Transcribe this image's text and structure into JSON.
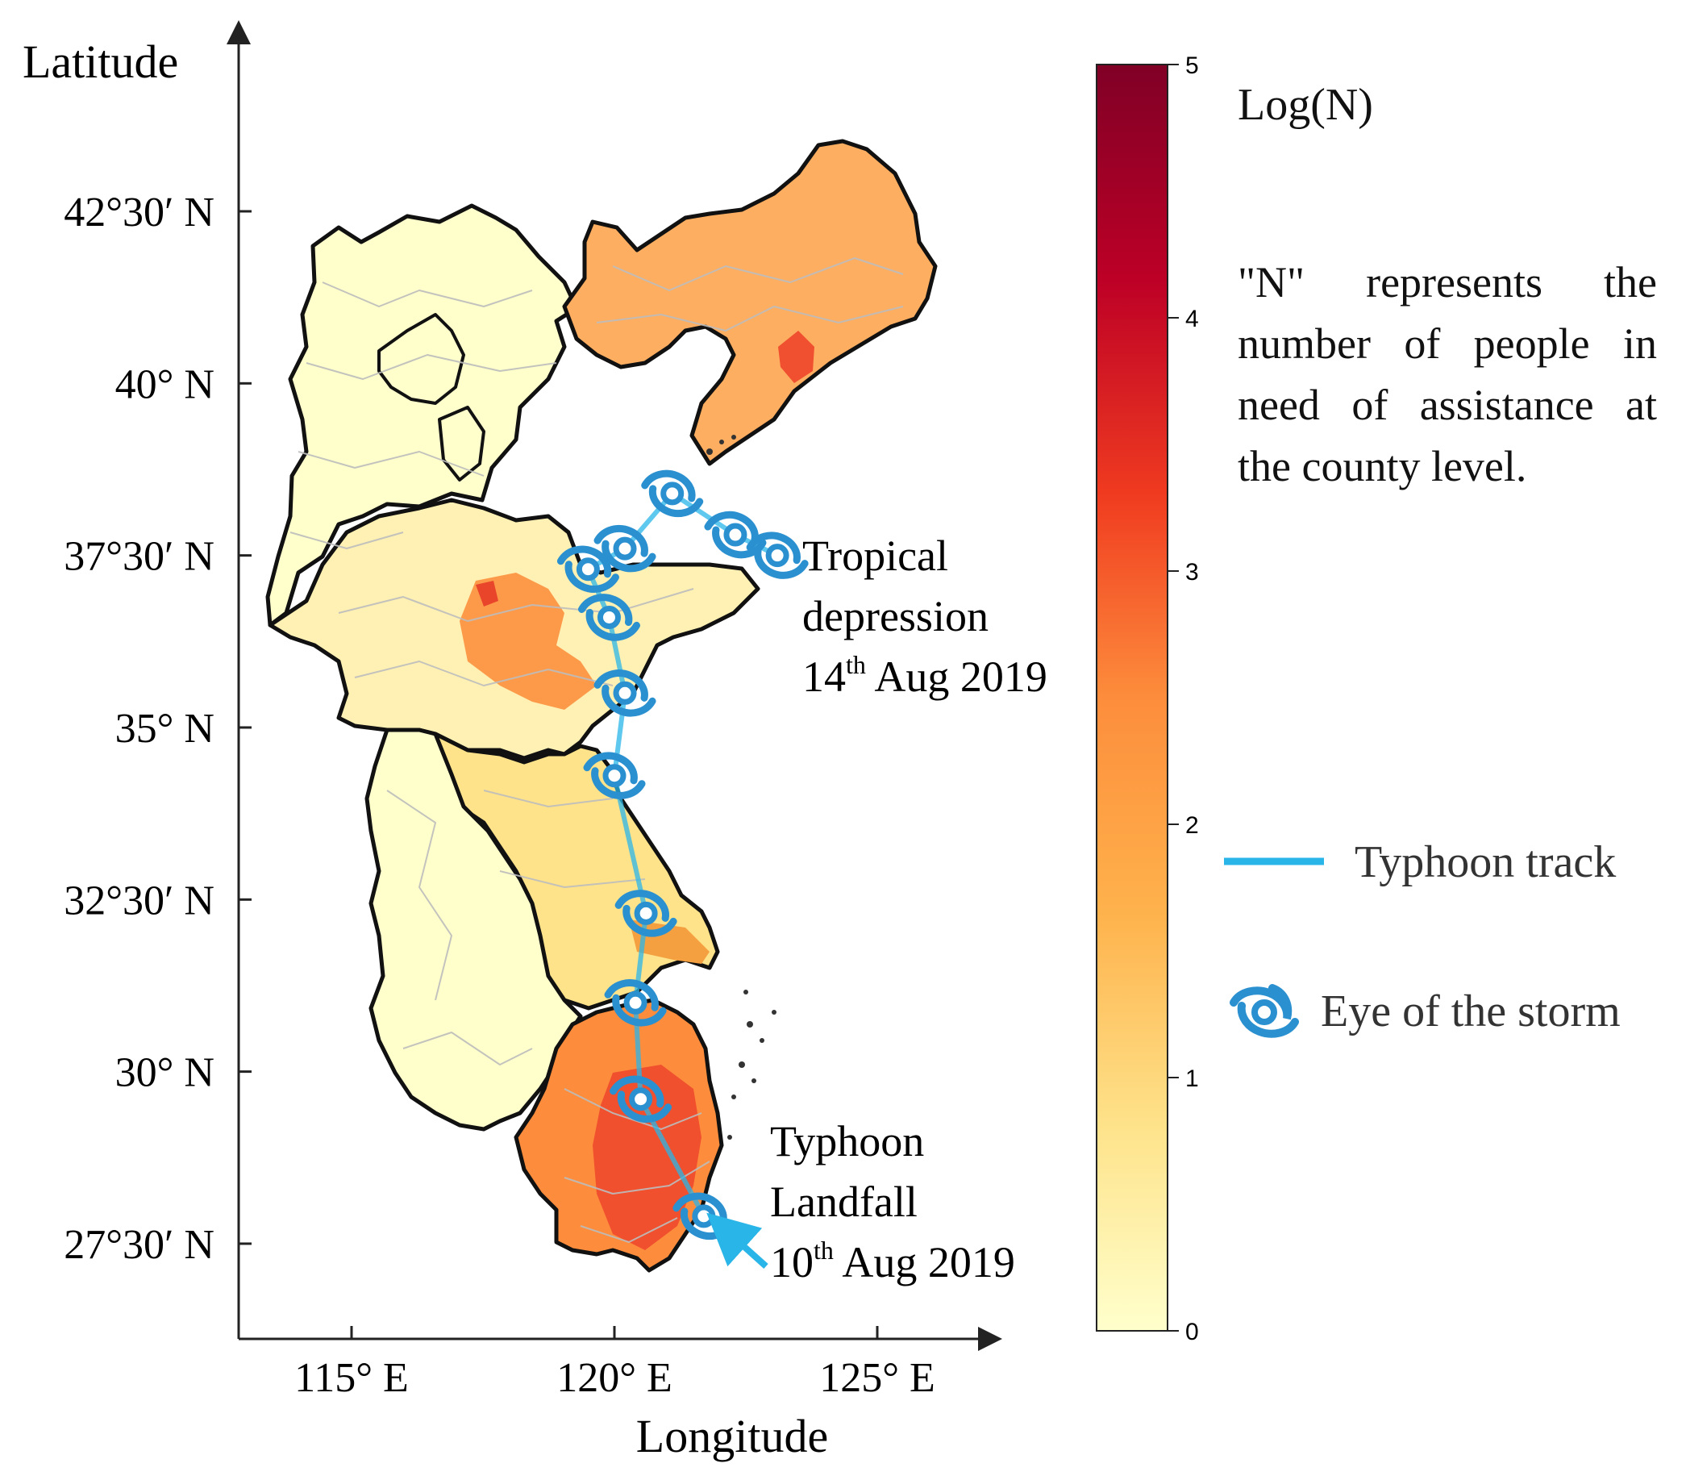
{
  "axes": {
    "y_title": "Latitude",
    "x_title": "Longitude",
    "y_ticks": [
      "42°30′ N",
      "40° N",
      "37°30′ N",
      "35° N",
      "32°30′ N",
      "30° N",
      "27°30′ N"
    ],
    "x_ticks": [
      "115° E",
      "120° E",
      "125° E"
    ]
  },
  "colorbar": {
    "title": "Log(N)",
    "ticks": [
      "0",
      "1",
      "2",
      "3",
      "4",
      "5"
    ],
    "range": [
      0,
      5
    ],
    "colors": [
      "#ffffcc",
      "#fed976",
      "#feb24c",
      "#fd8d3c",
      "#f03b20",
      "#bd0026",
      "#800026"
    ]
  },
  "note": "\"N\" represents the number of people in need of assistance at the county level.",
  "annotations": {
    "tropical": {
      "line1": "Tropical",
      "line2": "depression",
      "day": "14",
      "sup": "th",
      "rest": " Aug 2019"
    },
    "landfall": {
      "line1": "Typhoon",
      "line2": "Landfall",
      "day": "10",
      "sup": "th",
      "rest": " Aug 2019"
    }
  },
  "legend": {
    "track_label": "Typhoon track",
    "eye_label": "Eye of the storm",
    "track_color": "#29b5e8",
    "eye_color": "#2a90d0"
  },
  "typhoon_track": [
    {
      "lon": 121.7,
      "lat": 27.9
    },
    {
      "lon": 120.5,
      "lat": 29.6
    },
    {
      "lon": 120.4,
      "lat": 31.0
    },
    {
      "lon": 120.6,
      "lat": 32.3
    },
    {
      "lon": 120.0,
      "lat": 34.3
    },
    {
      "lon": 120.2,
      "lat": 35.5
    },
    {
      "lon": 119.9,
      "lat": 36.6
    },
    {
      "lon": 119.5,
      "lat": 37.3
    },
    {
      "lon": 120.2,
      "lat": 37.6
    },
    {
      "lon": 121.1,
      "lat": 38.4
    },
    {
      "lon": 122.3,
      "lat": 37.8
    },
    {
      "lon": 123.1,
      "lat": 37.5
    }
  ]
}
